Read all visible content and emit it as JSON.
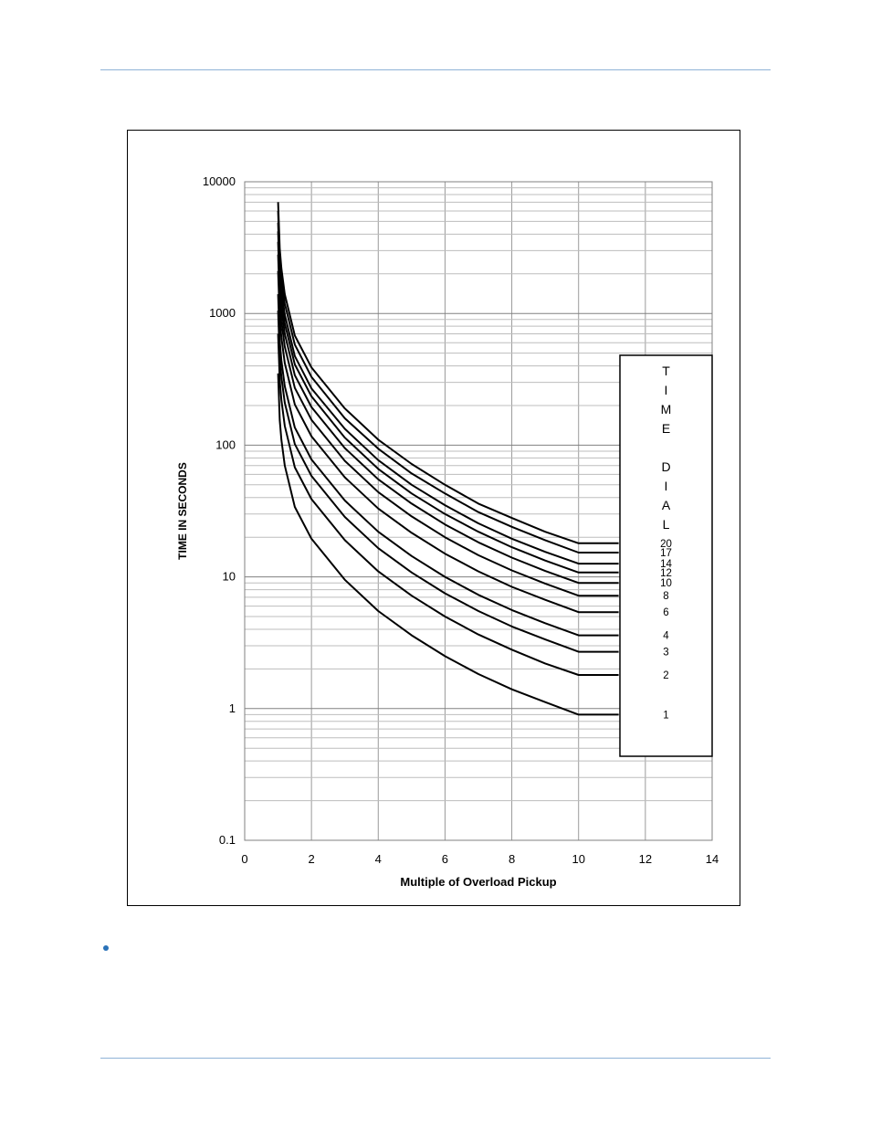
{
  "header": {
    "rule_color": "#8fb2d6"
  },
  "footer": {
    "rule_color": "#8fb2d6"
  },
  "bullet": {
    "color": "#2a72b8"
  },
  "chart_data": {
    "type": "line",
    "title": "",
    "xlabel": "Multiple of Overload Pickup",
    "ylabel": "TIME IN SECONDS",
    "xlim": [
      0,
      14
    ],
    "ylim": [
      0.1,
      10000
    ],
    "y_scale": "log",
    "x_ticks": [
      "0",
      "2",
      "4",
      "6",
      "8",
      "10",
      "12",
      "14"
    ],
    "y_ticks": [
      "0.1",
      "1",
      "10",
      "100",
      "1000",
      "10000"
    ],
    "grid": true,
    "legend": {
      "position": "right",
      "title_letters": [
        "T",
        "I",
        "M",
        "E",
        "",
        "D",
        "I",
        "A",
        "L"
      ],
      "title": "TIME DIAL"
    },
    "x": [
      1.0,
      1.05,
      1.1,
      1.2,
      1.5,
      2,
      3,
      4,
      5,
      6,
      7,
      8,
      9,
      10,
      11.2
    ],
    "series": [
      {
        "name": "20",
        "values": [
          7000,
          3100,
          2200,
          1400,
          680,
          390,
          190,
          110,
          72,
          50,
          36,
          28,
          22,
          18,
          18
        ]
      },
      {
        "name": "17",
        "values": [
          6000,
          2640,
          1870,
          1190,
          580,
          330,
          160,
          94,
          61,
          43,
          31,
          24,
          19,
          15.3,
          15.3
        ]
      },
      {
        "name": "14",
        "values": [
          4900,
          2170,
          1540,
          980,
          475,
          270,
          133,
          77,
          50,
          35,
          25.5,
          19.5,
          15.5,
          12.6,
          12.6
        ]
      },
      {
        "name": "12",
        "values": [
          4200,
          1860,
          1320,
          840,
          410,
          235,
          114,
          66,
          43,
          30,
          22,
          16.8,
          13.3,
          10.8,
          10.8
        ]
      },
      {
        "name": "10",
        "values": [
          3500,
          1550,
          1100,
          700,
          340,
          195,
          95,
          55,
          36,
          25,
          18.3,
          14,
          11.1,
          9.0,
          9.0
        ]
      },
      {
        "name": "8",
        "values": [
          2800,
          1240,
          880,
          560,
          272,
          156,
          76,
          44,
          28.8,
          20,
          14.6,
          11.2,
          8.9,
          7.2,
          7.2
        ]
      },
      {
        "name": "6",
        "values": [
          2100,
          930,
          660,
          420,
          204,
          117,
          57,
          33,
          21.6,
          15,
          11,
          8.4,
          6.7,
          5.4,
          5.4
        ]
      },
      {
        "name": "4",
        "values": [
          1400,
          620,
          440,
          280,
          136,
          78,
          38,
          22,
          14.4,
          10,
          7.3,
          5.6,
          4.45,
          3.6,
          3.6
        ]
      },
      {
        "name": "3",
        "values": [
          1050,
          465,
          330,
          210,
          102,
          58.5,
          28.5,
          16.5,
          10.8,
          7.5,
          5.5,
          4.2,
          3.35,
          2.7,
          2.7
        ]
      },
      {
        "name": "2",
        "values": [
          700,
          310,
          220,
          140,
          68,
          39,
          19,
          11,
          7.2,
          5,
          3.65,
          2.8,
          2.2,
          1.8,
          1.8
        ]
      },
      {
        "name": "1",
        "values": [
          350,
          155,
          110,
          70,
          34,
          19.5,
          9.5,
          5.5,
          3.6,
          2.5,
          1.83,
          1.4,
          1.12,
          0.9,
          0.9
        ]
      }
    ]
  }
}
